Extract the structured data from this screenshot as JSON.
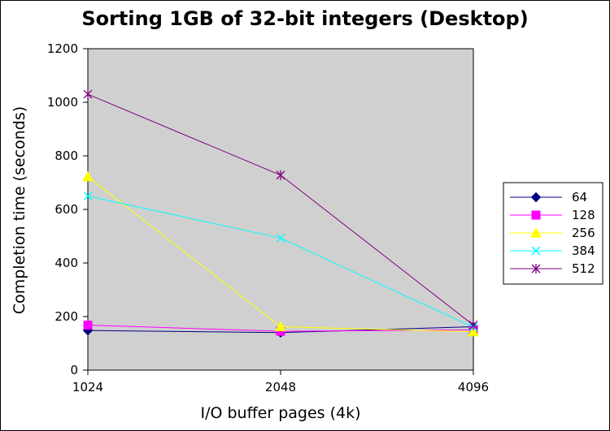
{
  "chart_data": {
    "type": "line",
    "title": "Sorting 1GB of 32-bit integers (Desktop)",
    "xlabel": "I/O buffer pages (4k)",
    "ylabel": "Completion time (seconds)",
    "categories": [
      "1024",
      "2048",
      "4096"
    ],
    "ylim": [
      0,
      1200
    ],
    "yticks": [
      0,
      200,
      400,
      600,
      800,
      1000,
      1200
    ],
    "grid": false,
    "plot_background": "#d0d0d0",
    "legend_position": "right",
    "series": [
      {
        "name": "64",
        "color": "#000080",
        "marker": "diamond",
        "values": [
          148,
          140,
          162
        ]
      },
      {
        "name": "128",
        "color": "#ff00ff",
        "marker": "square",
        "values": [
          168,
          145,
          150
        ]
      },
      {
        "name": "256",
        "color": "#ffff00",
        "marker": "triangle",
        "values": [
          722,
          162,
          143
        ]
      },
      {
        "name": "384",
        "color": "#00ffff",
        "marker": "x",
        "values": [
          650,
          493,
          160
        ]
      },
      {
        "name": "512",
        "color": "#800080",
        "marker": "star",
        "values": [
          1030,
          728,
          168
        ]
      }
    ]
  }
}
